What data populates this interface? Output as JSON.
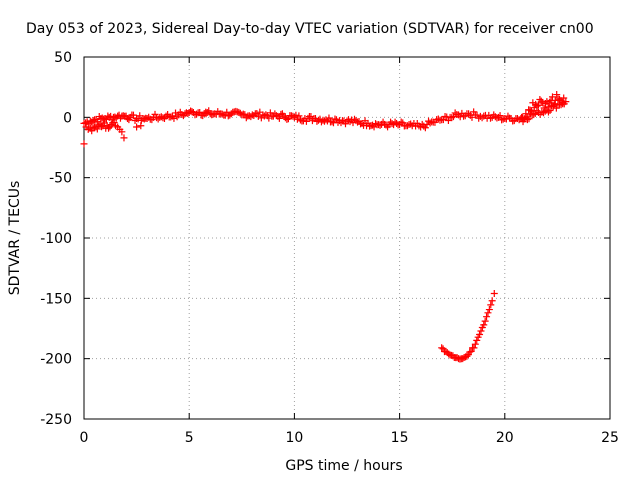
{
  "chart_data": {
    "type": "scatter",
    "title": "Day 053 of 2023, Sidereal Day-to-day VTEC variation (SDTVAR) for receiver cn00",
    "xlabel": "GPS time / hours",
    "ylabel": "SDTVAR / TECUs",
    "xlim": [
      0,
      25
    ],
    "ylim": [
      -250,
      50
    ],
    "xticks": [
      0,
      5,
      10,
      15,
      20,
      25
    ],
    "xtick_labels": [
      "0",
      "5",
      "10",
      "15",
      "20",
      "25"
    ],
    "yticks": [
      -250,
      -200,
      -150,
      -100,
      -50,
      0,
      50
    ],
    "ytick_labels": [
      "-250",
      "-200",
      "-150",
      "-100",
      "-50",
      "0",
      "50"
    ],
    "grid": true,
    "marker": "+",
    "series": [
      {
        "name": "main band",
        "color": "#ff0000",
        "x": [
          0.0,
          0.3,
          0.5,
          0.8,
          1.0,
          1.2,
          1.4,
          1.6,
          1.8,
          2.0,
          2.2,
          2.5,
          2.8,
          3.0,
          3.3,
          3.6,
          3.9,
          4.2,
          4.5,
          4.8,
          5.0,
          5.2,
          5.5,
          6.0,
          6.5,
          7.0,
          7.5,
          8.0,
          8.5,
          9.0,
          9.5,
          10.0,
          10.5,
          11.0,
          11.5,
          12.0,
          12.5,
          13.0,
          13.5,
          14.0,
          14.5,
          15.0,
          15.3,
          15.6,
          16.0,
          16.3,
          16.6,
          17.0,
          17.4,
          17.8,
          18.2,
          18.6,
          19.0,
          19.4,
          19.7,
          20.0,
          20.3,
          20.6,
          21.0,
          21.3,
          21.6,
          22.0,
          22.3,
          22.6,
          22.9
        ],
        "values": [
          -5,
          -3,
          -2,
          -1,
          -1,
          0,
          0,
          1,
          1,
          1,
          0,
          -1,
          -1,
          -1,
          0,
          0,
          1,
          1,
          2,
          3,
          4,
          4,
          4,
          3,
          3,
          3,
          2,
          2,
          2,
          1,
          1,
          0,
          -1,
          -1,
          -2,
          -2,
          -3,
          -4,
          -5,
          -6,
          -6,
          -6,
          -7,
          -7,
          -8,
          -6,
          -4,
          -2,
          0,
          2,
          3,
          2,
          1,
          0,
          0,
          -1,
          -1,
          -1,
          0,
          2,
          4,
          6,
          9,
          11,
          13
        ]
      },
      {
        "name": "lower dip",
        "color": "#ff0000",
        "x": [
          0.1,
          0.2,
          0.3,
          0.5,
          0.7,
          0.9,
          1.1,
          1.3,
          1.5,
          1.6,
          1.7,
          1.8,
          1.9
        ],
        "values": [
          -8,
          -10,
          -9,
          -8,
          -7,
          -7,
          -7,
          -6,
          -7,
          -8,
          -10,
          -12,
          -17
        ]
      },
      {
        "name": "outlier points",
        "color": "#ff0000",
        "x": [
          0.0,
          2.5,
          2.7,
          5.8
        ],
        "values": [
          -22,
          -8,
          -7,
          3
        ]
      },
      {
        "name": "spikes 20-23h",
        "color": "#ff0000",
        "x": [
          20.8,
          21.0,
          21.2,
          21.4,
          21.6,
          21.8,
          22.0,
          22.2,
          22.4,
          22.6,
          22.8
        ],
        "values": [
          0,
          3,
          6,
          8,
          10,
          12,
          13,
          14,
          14,
          15,
          16
        ]
      },
      {
        "name": "lower arc",
        "color": "#ff0000",
        "x": [
          17.0,
          17.2,
          17.4,
          17.6,
          17.8,
          18.0,
          18.2,
          18.4,
          18.6,
          18.8,
          19.0,
          19.2,
          19.4,
          19.5
        ],
        "values": [
          -191,
          -194,
          -197,
          -199,
          -200,
          -200,
          -198,
          -194,
          -188,
          -180,
          -172,
          -162,
          -152,
          -146
        ]
      }
    ]
  }
}
